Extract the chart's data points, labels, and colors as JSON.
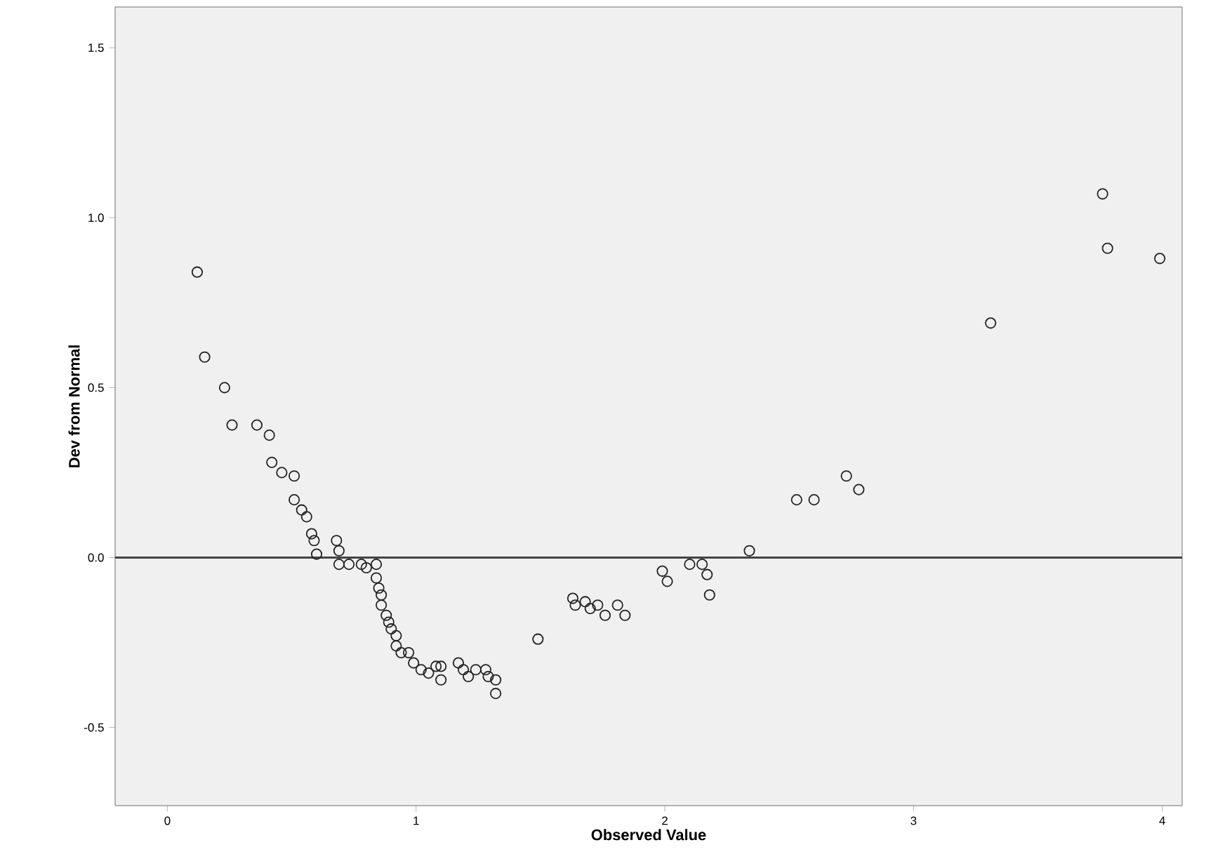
{
  "chart_data": {
    "type": "scatter",
    "xlabel": "Observed Value",
    "ylabel": "Dev from Normal",
    "xlim": [
      -0.21,
      4.08
    ],
    "ylim": [
      -0.73,
      1.62
    ],
    "xticks": [
      0,
      1,
      2,
      3,
      4
    ],
    "yticks": [
      {
        "value": -0.5,
        "label": "-0.5"
      },
      {
        "value": 0,
        "label": "0.0"
      },
      {
        "value": 0.5,
        "label": "0.5"
      },
      {
        "value": 1,
        "label": "1.0"
      },
      {
        "value": 1.5,
        "label": "1.5"
      }
    ],
    "grid": false,
    "marker": "circle",
    "ref_lines": [
      {
        "axis": "y",
        "value": 0,
        "color": "#444444"
      }
    ],
    "series": [
      {
        "color": "#222222",
        "x": [
          0.12,
          0.15,
          0.23,
          0.26,
          0.36,
          0.41,
          0.42,
          0.46,
          0.51,
          0.51,
          0.54,
          0.56,
          0.58,
          0.59,
          0.6,
          0.68,
          0.69,
          0.69,
          0.73,
          0.78,
          0.8,
          0.84,
          0.84,
          0.85,
          0.86,
          0.86,
          0.88,
          0.89,
          0.9,
          0.92,
          0.92,
          0.94,
          0.97,
          0.99,
          1.02,
          1.05,
          1.08,
          1.1,
          1.1,
          1.17,
          1.19,
          1.21,
          1.24,
          1.28,
          1.29,
          1.32,
          1.32,
          1.49,
          1.63,
          1.64,
          1.68,
          1.7,
          1.73,
          1.76,
          1.81,
          1.84,
          1.99,
          2.01,
          2.1,
          2.15,
          2.17,
          2.18,
          2.34,
          2.53,
          2.6,
          2.73,
          2.78,
          3.31,
          3.76,
          3.78,
          3.99
        ],
        "values": [
          0.84,
          0.59,
          0.5,
          0.39,
          0.39,
          0.36,
          0.28,
          0.25,
          0.24,
          0.17,
          0.14,
          0.12,
          0.07,
          0.05,
          0.01,
          0.05,
          0.02,
          -0.02,
          -0.02,
          -0.02,
          -0.03,
          -0.02,
          -0.06,
          -0.09,
          -0.11,
          -0.14,
          -0.17,
          -0.19,
          -0.21,
          -0.23,
          -0.26,
          -0.28,
          -0.28,
          -0.31,
          -0.33,
          -0.34,
          -0.32,
          -0.32,
          -0.36,
          -0.31,
          -0.33,
          -0.35,
          -0.33,
          -0.33,
          -0.35,
          -0.36,
          -0.4,
          -0.24,
          -0.12,
          -0.14,
          -0.13,
          -0.15,
          -0.14,
          -0.17,
          -0.14,
          -0.17,
          -0.04,
          -0.07,
          -0.02,
          -0.02,
          -0.05,
          -0.11,
          0.02,
          0.17,
          0.17,
          0.24,
          0.2,
          0.69,
          1.07,
          0.91,
          0.88
        ]
      }
    ]
  }
}
